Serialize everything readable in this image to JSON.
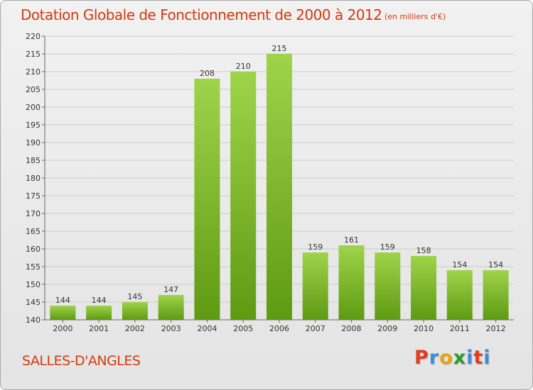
{
  "header": {
    "title": "Dotation Globale de Fonctionnement de 2000 à 2012",
    "unit": "(en milliers d'€)"
  },
  "footer": {
    "city": "SALLES-D'ANGLES",
    "logo": [
      "P",
      "r",
      "o",
      "x",
      "i",
      "t",
      "i"
    ],
    "logo_colors": [
      "#e23b1d",
      "#3a8fd6",
      "#e8a412",
      "#2f9a2a",
      "#3a8fd6",
      "#e23b1d",
      "#3a8fd6"
    ]
  },
  "colors": {
    "accent": "#d23a0e",
    "bar_light": "#9fd44a",
    "bar_dark": "#5e9a12",
    "grid": "#cccccc",
    "axis": "#666666"
  },
  "chart_data": {
    "type": "bar",
    "title": "Dotation Globale de Fonctionnement de 2000 à 2012",
    "subtitle": "(en milliers d'€)",
    "xlabel": "",
    "ylabel": "",
    "categories": [
      "2000",
      "2001",
      "2002",
      "2003",
      "2004",
      "2005",
      "2006",
      "2007",
      "2008",
      "2009",
      "2010",
      "2011",
      "2012"
    ],
    "values": [
      144,
      144,
      145,
      147,
      208,
      210,
      215,
      159,
      161,
      159,
      158,
      154,
      154
    ],
    "ylim": [
      140,
      220
    ],
    "yticks": [
      140,
      145,
      150,
      155,
      160,
      165,
      170,
      175,
      180,
      185,
      190,
      195,
      200,
      205,
      210,
      215,
      220
    ],
    "grid": true,
    "legend": "none"
  }
}
